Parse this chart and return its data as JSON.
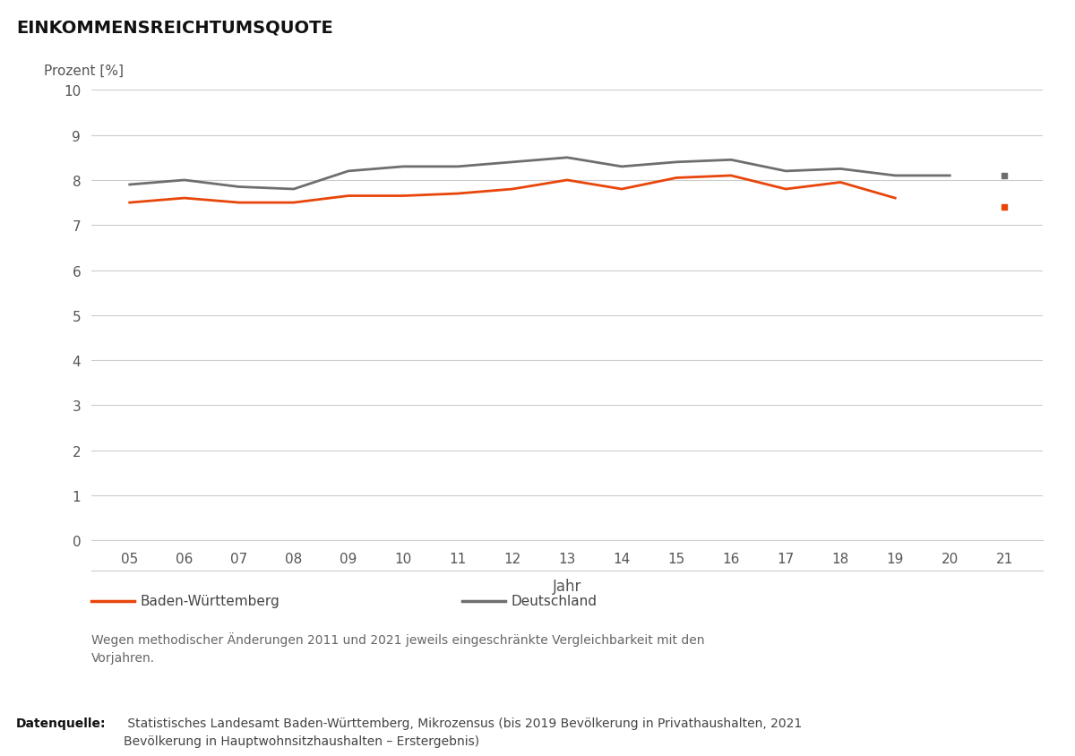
{
  "title": "EINKOMMENSREICHTUMSQUOTE",
  "ylabel": "Prozent [%]",
  "xlabel": "Jahr",
  "years": [
    5,
    6,
    7,
    8,
    9,
    10,
    11,
    12,
    13,
    14,
    15,
    16,
    17,
    18,
    19,
    20,
    21
  ],
  "bw_values": [
    7.5,
    7.6,
    7.5,
    7.5,
    7.65,
    7.65,
    7.7,
    7.8,
    8.0,
    7.8,
    8.05,
    8.1,
    7.8,
    7.95,
    7.6,
    null,
    7.4
  ],
  "de_values": [
    7.9,
    8.0,
    7.85,
    7.8,
    8.2,
    8.3,
    8.3,
    8.4,
    8.5,
    8.3,
    8.4,
    8.45,
    8.2,
    8.25,
    8.1,
    8.1,
    8.1
  ],
  "bw_color": "#E8450A",
  "de_color": "#6E6E6E",
  "ylim": [
    0,
    10
  ],
  "yticks": [
    0,
    1,
    2,
    3,
    4,
    5,
    6,
    7,
    8,
    9,
    10
  ],
  "grid_color": "#CCCCCC",
  "background_color": "#FFFFFF",
  "legend_bw": "Baden-Württemberg",
  "legend_de": "Deutschland",
  "note": "Wegen methodischer Änderungen 2011 und 2021 jeweils eingeschränkte Vergleichbarkeit mit den\nVorjahren.",
  "source_bold": "Datenquelle:",
  "source_text": " Statistisches Landesamt Baden-Württemberg, Mikrozensus (bis 2019 Bevölkerung in Privathaushalten, 2021\nBevölkerung in Hauptwohnsitzhaushalten – Erstergebnis)"
}
